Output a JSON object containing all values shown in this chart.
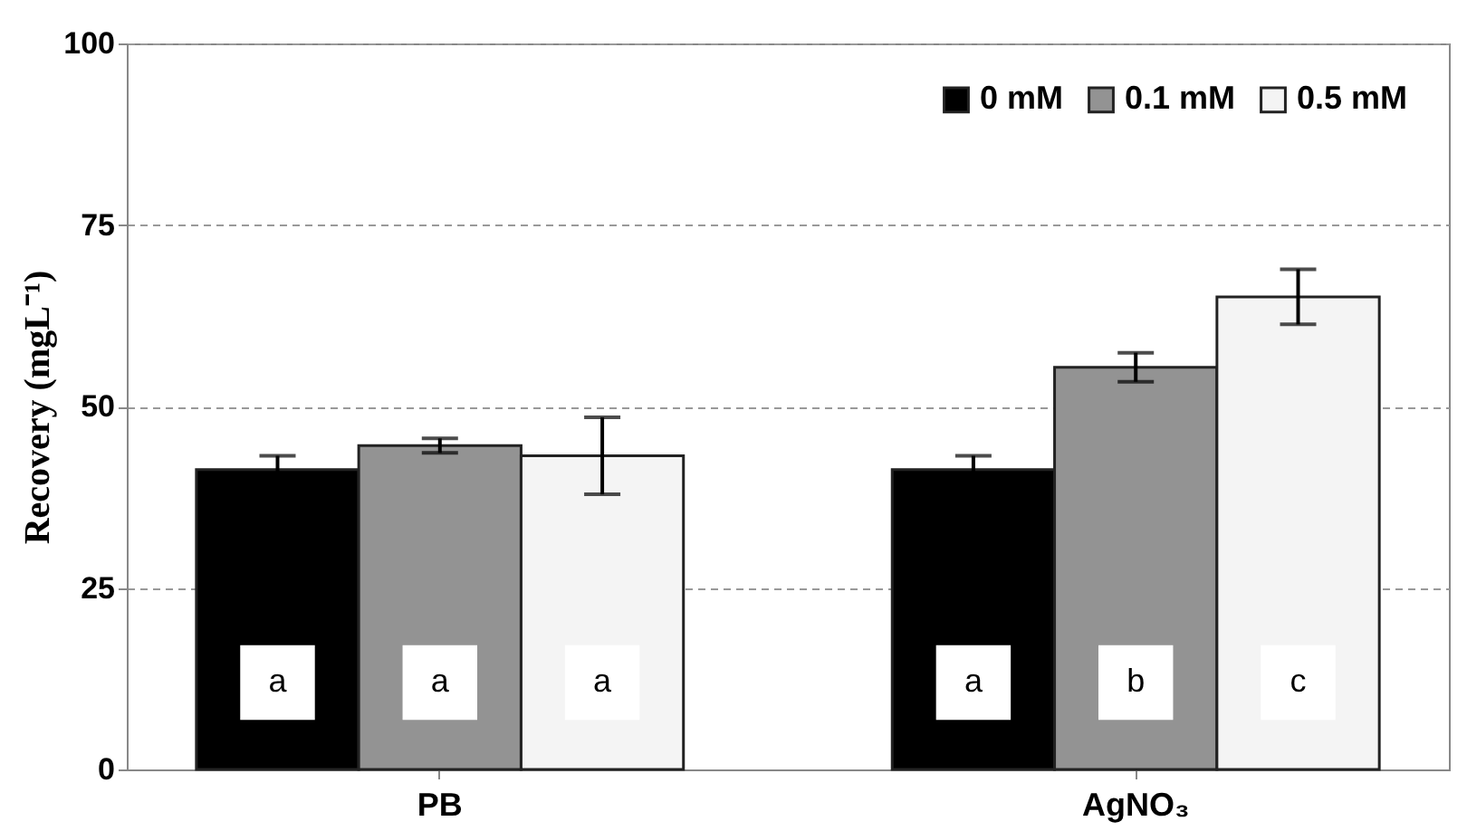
{
  "chart_data": {
    "type": "bar",
    "ylabel": "Recovery (mgL⁻¹)",
    "categories": [
      "PB",
      "AgNO₃"
    ],
    "series": [
      {
        "name": "0 mM",
        "color": "#000000",
        "values": [
          41.3,
          41.3
        ],
        "errors": [
          1.9,
          1.9
        ]
      },
      {
        "name": "0.1 mM",
        "color": "#939393",
        "values": [
          44.6,
          55.4
        ],
        "errors": [
          1.0,
          2.0
        ]
      },
      {
        "name": "0.5 mM",
        "color": "#f4f4f4",
        "values": [
          43.2,
          65.1
        ],
        "errors": [
          5.3,
          3.8
        ]
      }
    ],
    "ylim": [
      0,
      100
    ],
    "yticks": [
      0,
      25,
      50,
      75,
      100
    ],
    "grid": "y",
    "legend": "top right",
    "annotations": [
      "a",
      "a",
      "a",
      "a",
      "b",
      "c"
    ]
  }
}
